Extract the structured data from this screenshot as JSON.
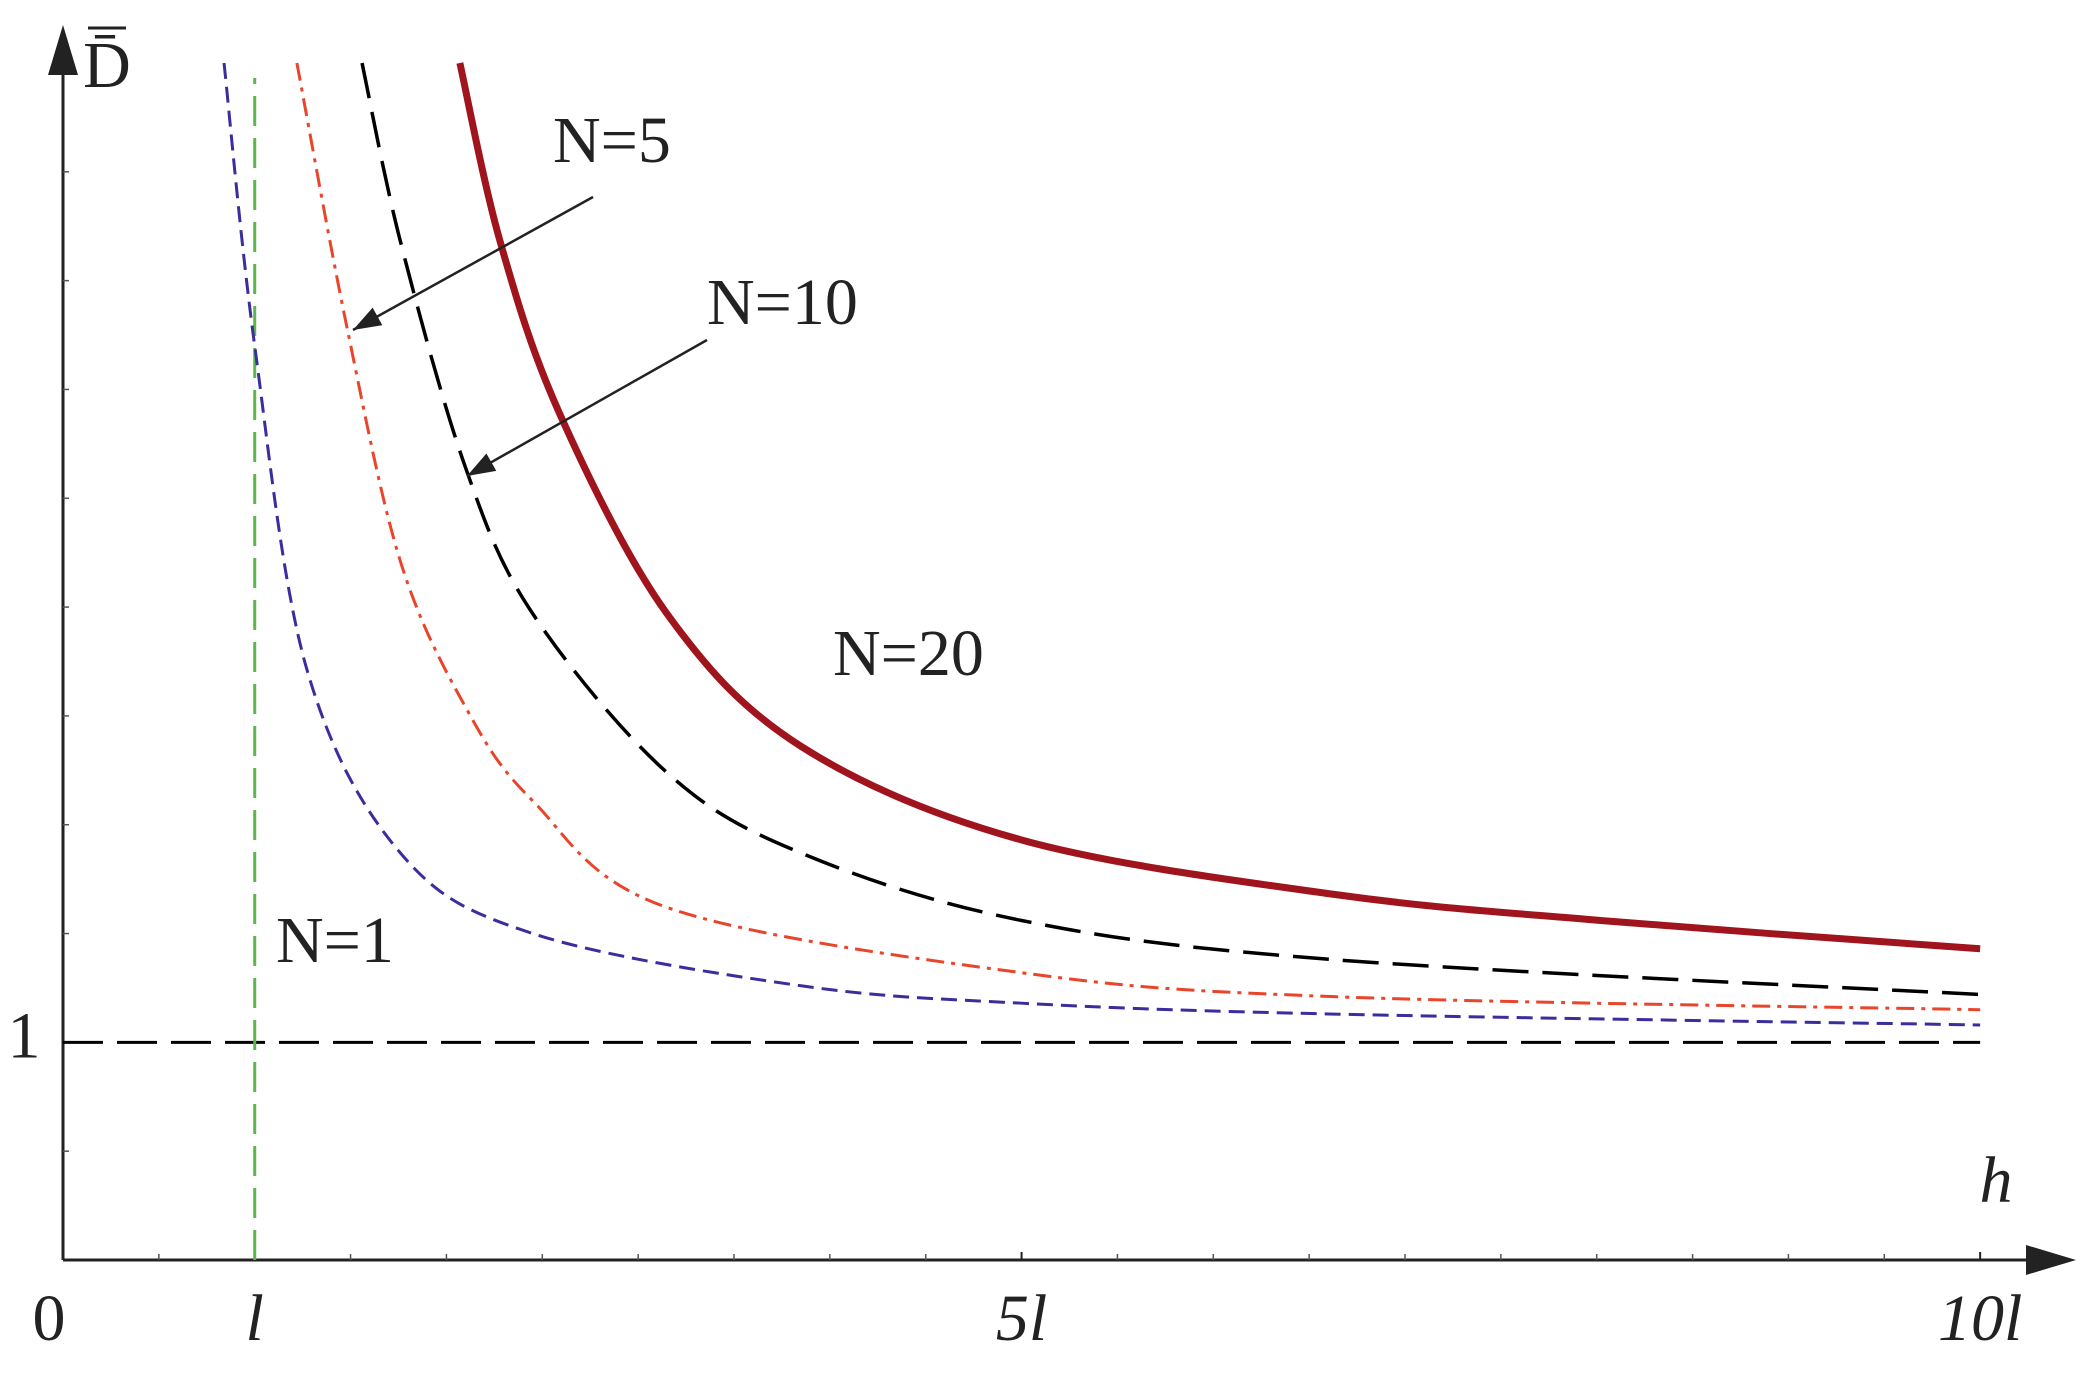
{
  "chart_data": {
    "type": "line",
    "x_label": "h",
    "y_label": "D̄",
    "xlim": [
      0,
      10.5
    ],
    "ylim": [
      0,
      5.5
    ],
    "xticks": [
      0,
      {
        "value": 1,
        "label": "l"
      },
      {
        "value": 5,
        "label": "5l"
      },
      {
        "value": 10,
        "label": "10l"
      }
    ],
    "xminorticks": [
      0.5,
      1.5,
      2,
      2.5,
      3,
      3.5,
      4,
      4.5,
      5.5,
      6,
      6.5,
      7,
      7.5,
      8,
      8.5,
      9,
      9.5
    ],
    "yticks": [
      1
    ],
    "yminorticks": [
      0.5,
      1.5,
      2,
      2.5,
      3,
      3.5,
      4,
      4.5,
      5
    ],
    "hline": {
      "y": 1,
      "color": "#000000"
    },
    "vline": {
      "x": 1,
      "color": "#5ab84a"
    },
    "series": [
      {
        "name": "N=1",
        "color": "#3a2d9c",
        "style": "dashed",
        "x": [
          0.84,
          1,
          1.27,
          1.76,
          2.45,
          3.85,
          5,
          6.63,
          10
        ],
        "values": [
          5.5,
          4.2,
          2.72,
          1.87,
          1.5,
          1.26,
          1.18,
          1.13,
          1.08
        ]
      },
      {
        "name": "N=5",
        "color": "#e8452a",
        "style": "dashdot",
        "x": [
          1.22,
          1.48,
          1.76,
          2.1,
          2.45,
          3.15,
          5,
          6.63,
          10
        ],
        "values": [
          5.5,
          4.29,
          3.21,
          2.54,
          2.11,
          1.62,
          1.32,
          1.21,
          1.15
        ]
      },
      {
        "name": "N=10",
        "color": "#000000",
        "style": "longdash",
        "x": [
          1.56,
          1.76,
          2.1,
          2.45,
          3.15,
          3.85,
          5,
          6.63,
          10
        ],
        "values": [
          5.5,
          4.68,
          3.64,
          2.97,
          2.24,
          1.87,
          1.56,
          1.38,
          1.22
        ]
      },
      {
        "name": "N=20",
        "color": "#a0141e",
        "style": "solid",
        "x": [
          2.07,
          2.28,
          2.59,
          3.15,
          3.85,
          5,
          6.63,
          8.02,
          10
        ],
        "values": [
          5.5,
          4.68,
          3.89,
          2.97,
          2.36,
          1.93,
          1.68,
          1.56,
          1.43
        ]
      }
    ]
  }
}
